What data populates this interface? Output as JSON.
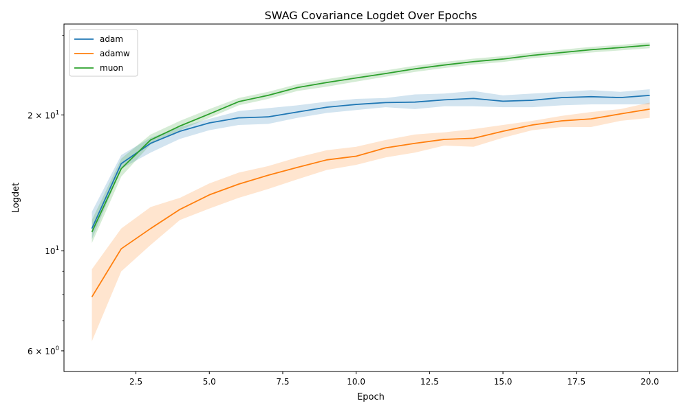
{
  "chart_data": {
    "type": "line",
    "title": "SWAG Covariance Logdet Over Epochs",
    "xlabel": "Epoch",
    "ylabel": "Logdet",
    "xlim": [
      0.05,
      20.95
    ],
    "ylim": [
      5.4,
      31.8
    ],
    "yscale": "log",
    "x_ticks": [
      2.5,
      5.0,
      7.5,
      10.0,
      12.5,
      15.0,
      17.5,
      20.0
    ],
    "x_tick_labels": [
      "2.5",
      "5.0",
      "7.5",
      "10.0",
      "12.5",
      "15.0",
      "17.5",
      "20.0"
    ],
    "y_ticks_major": [
      {
        "value": 6,
        "base": "6 × 10",
        "exp": "0"
      },
      {
        "value": 10,
        "base": "10",
        "exp": "1"
      },
      {
        "value": 20,
        "base": "2 × 10",
        "exp": "1"
      }
    ],
    "y_ticks_minor": [
      7,
      8,
      9,
      30
    ],
    "grid": false,
    "legend_position": "top-left",
    "x": [
      1,
      2,
      3,
      4,
      5,
      6,
      7,
      8,
      9,
      10,
      11,
      12,
      13,
      14,
      15,
      16,
      17,
      18,
      19,
      20
    ],
    "series": [
      {
        "name": "adam",
        "color": "#1f77b4",
        "values": [
          11.2,
          15.6,
          17.3,
          18.4,
          19.2,
          19.7,
          19.8,
          20.3,
          20.8,
          21.1,
          21.3,
          21.35,
          21.6,
          21.75,
          21.45,
          21.55,
          21.85,
          21.95,
          21.85,
          22.1
        ],
        "lower": [
          10.6,
          15.2,
          16.5,
          17.7,
          18.5,
          19.0,
          19.1,
          19.7,
          20.2,
          20.5,
          20.8,
          20.6,
          20.9,
          20.9,
          20.8,
          20.8,
          21.0,
          21.1,
          21.1,
          21.1
        ],
        "upper": [
          12.2,
          16.3,
          17.8,
          18.8,
          19.6,
          20.4,
          20.7,
          21.0,
          21.4,
          21.7,
          21.8,
          22.2,
          22.3,
          22.6,
          22.1,
          22.3,
          22.5,
          22.7,
          22.5,
          22.8
        ]
      },
      {
        "name": "adamw",
        "color": "#ff7f0e",
        "values": [
          7.9,
          10.1,
          11.2,
          12.35,
          13.3,
          14.05,
          14.7,
          15.3,
          15.9,
          16.2,
          16.9,
          17.3,
          17.65,
          17.75,
          18.4,
          19.0,
          19.4,
          19.6,
          20.1,
          20.6
        ],
        "lower": [
          6.3,
          9.0,
          10.3,
          11.7,
          12.4,
          13.1,
          13.7,
          14.4,
          15.1,
          15.5,
          16.1,
          16.5,
          17.1,
          17.0,
          17.8,
          18.5,
          18.8,
          18.8,
          19.4,
          19.7
        ],
        "upper": [
          9.1,
          11.2,
          12.5,
          13.1,
          14.1,
          14.9,
          15.4,
          16.1,
          16.7,
          17.0,
          17.6,
          18.1,
          18.3,
          18.6,
          19.0,
          19.4,
          19.9,
          20.3,
          20.6,
          21.3
        ]
      },
      {
        "name": "muon",
        "color": "#2ca02c",
        "values": [
          11.0,
          15.2,
          17.6,
          18.9,
          20.1,
          21.4,
          22.1,
          23.0,
          23.6,
          24.15,
          24.7,
          25.3,
          25.8,
          26.25,
          26.6,
          27.1,
          27.5,
          27.9,
          28.2,
          28.55
        ],
        "lower": [
          10.4,
          14.6,
          17.2,
          18.5,
          19.7,
          21.0,
          21.7,
          22.6,
          23.1,
          23.7,
          24.3,
          24.9,
          25.4,
          25.85,
          26.2,
          26.7,
          27.1,
          27.5,
          27.8,
          28.1
        ],
        "upper": [
          11.7,
          16.0,
          18.1,
          19.4,
          20.6,
          21.8,
          22.5,
          23.4,
          24.0,
          24.6,
          25.1,
          25.7,
          26.2,
          26.65,
          27.0,
          27.5,
          27.9,
          28.3,
          28.6,
          28.95
        ]
      }
    ]
  }
}
